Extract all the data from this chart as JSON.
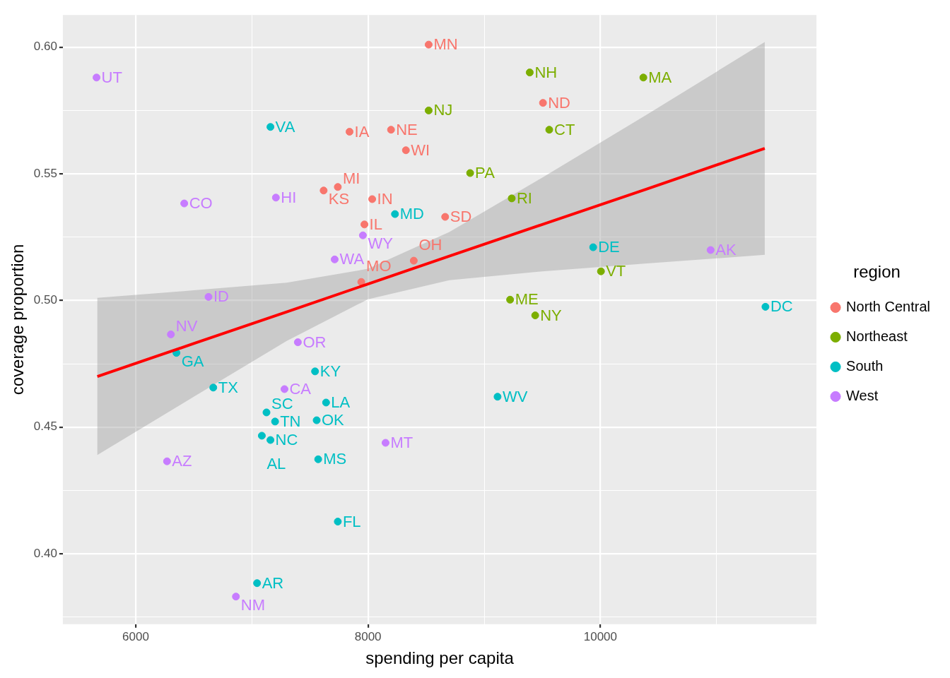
{
  "chart_data": {
    "type": "scatter",
    "xlabel": "spending per capita",
    "ylabel": "coverage proportion",
    "legend_title": "region",
    "legend": "right",
    "grid": true,
    "marker": "circle",
    "data_labels": false,
    "xlim": [
      5373,
      11860
    ],
    "ylim": [
      0.3722,
      0.6127
    ],
    "xticks": [
      6000,
      {
        "value": 7000,
        "label": null
      },
      8000,
      {
        "value": 9000,
        "label": null
      },
      10000,
      {
        "value": 11000,
        "label": null
      }
    ],
    "yticks": [
      {
        "value": 0.375,
        "label": null
      },
      {
        "value": 0.4,
        "label": "0.40"
      },
      {
        "value": 0.425,
        "label": null
      },
      {
        "value": 0.45,
        "label": "0.45"
      },
      {
        "value": 0.475,
        "label": null
      },
      {
        "value": 0.5,
        "label": "0.50"
      },
      {
        "value": 0.525,
        "label": null
      },
      {
        "value": 0.55,
        "label": "0.55"
      },
      {
        "value": 0.575,
        "label": null
      },
      {
        "value": 0.6,
        "label": "0.60"
      }
    ],
    "series": [
      {
        "name": "North Central",
        "color": "#f8766d",
        "x": [
          8522,
          9506,
          7841,
          8198,
          8326,
          7618,
          7740,
          8036,
          8664,
          7969,
          8394,
          7942
        ],
        "values": [
          0.601,
          0.578,
          0.5666,
          0.5674,
          0.5593,
          0.5434,
          0.5448,
          0.54,
          0.533,
          0.53,
          0.5157,
          0.5073
        ],
        "value_labels": [
          "MN",
          "ND",
          "IA",
          "NE",
          "WI",
          "KS",
          "MI",
          "IN",
          "SD",
          "IL",
          "OH",
          "MO"
        ]
      },
      {
        "name": "Northeast",
        "color": "#7cae00",
        "x": [
          9392,
          10370,
          8522,
          9560,
          8879,
          9237,
          10005,
          9223,
          9439
        ],
        "values": [
          0.59,
          0.588,
          0.575,
          0.5674,
          0.5503,
          0.5403,
          0.5115,
          0.5003,
          0.4941
        ],
        "value_labels": [
          "NH",
          "MA",
          "NJ",
          "CT",
          "PA",
          "RI",
          "VT",
          "ME",
          "NY"
        ]
      },
      {
        "name": "South",
        "color": "#00bfc4",
        "x": [
          7160,
          8232,
          9938,
          11421,
          6351,
          7544,
          6668,
          9115,
          7639,
          7126,
          7200,
          7558,
          7086,
          7160,
          7571,
          7740,
          7045
        ],
        "values": [
          0.5685,
          0.5341,
          0.521,
          0.4975,
          0.4793,
          0.472,
          0.4656,
          0.462,
          0.4597,
          0.4558,
          0.4522,
          0.4527,
          0.4466,
          0.4449,
          0.4373,
          0.4127,
          0.3884
        ],
        "value_labels": [
          "VA",
          "MD",
          "DE",
          "DC",
          "GA",
          "KY",
          "TX",
          "WV",
          "LA",
          "SC",
          "TN",
          "OK",
          "AL",
          "NC",
          "MS",
          "FL",
          "AR"
        ]
      },
      {
        "name": "West",
        "color": "#c77cff",
        "x": [
          5663,
          7207,
          6418,
          7956,
          10949,
          7713,
          6627,
          6303,
          7396,
          7281,
          8151,
          6270,
          6863
        ],
        "values": [
          0.588,
          0.5406,
          0.5383,
          0.5257,
          0.5199,
          0.5162,
          0.5014,
          0.4866,
          0.4835,
          0.465,
          0.4438,
          0.4365,
          0.3831
        ],
        "value_labels": [
          "UT",
          "HI",
          "CO",
          "WY",
          "AK",
          "WA",
          "ID",
          "NV",
          "OR",
          "CA",
          "MT",
          "AZ",
          "NM"
        ]
      },
      {
        "type": "line",
        "marker": "none",
        "color": "#ff0000",
        "x": [
          5670,
          6500,
          7300,
          8000,
          8700,
          9500,
          10400,
          11415
        ],
        "values": [
          0.47,
          0.483,
          0.4955,
          0.5065,
          0.5175,
          0.53,
          0.544,
          0.56
        ],
        "lower": [
          0.439,
          0.462,
          0.484,
          0.5005,
          0.508,
          0.5115,
          0.5146,
          0.518
        ],
        "upper": [
          0.501,
          0.504,
          0.507,
          0.5125,
          0.527,
          0.5485,
          0.5734,
          0.602
        ]
      }
    ]
  }
}
